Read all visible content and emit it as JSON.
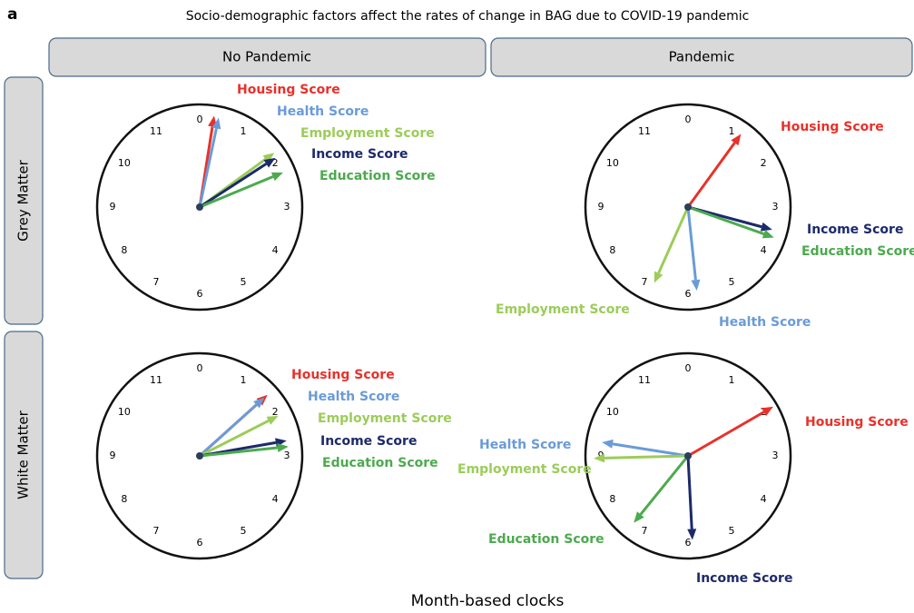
{
  "panel_label": "a",
  "title": "Socio-demographic factors affect the rates of change in BAG due to COVID-19 pandemic",
  "columns": [
    "No Pandemic",
    "Pandemic"
  ],
  "rows": [
    "Grey Matter",
    "White Matter"
  ],
  "footer": "Month-based clocks",
  "clock_numbers": [
    0,
    1,
    2,
    3,
    4,
    5,
    6,
    7,
    8,
    9,
    10,
    11
  ],
  "clocks": [
    {
      "arrows": [
        {
          "label": "Housing Score",
          "color": "#e8312b",
          "month": 0.3,
          "magnitude": 0.9
        },
        {
          "label": "Health Score",
          "color": "#6a9bd8",
          "month": 0.4,
          "magnitude": 0.89
        },
        {
          "label": "Employment Score",
          "color": "#9ccc5a",
          "month": 1.8,
          "magnitude": 0.9
        },
        {
          "label": "Income Score",
          "color": "#1c2a6b",
          "month": 1.9,
          "magnitude": 0.88
        },
        {
          "label": "Education Score",
          "color": "#4caa4e",
          "month": 2.25,
          "magnitude": 0.88
        }
      ]
    },
    {
      "arrows": [
        {
          "label": "Housing Score",
          "color": "#e8312b",
          "month": 1.2,
          "magnitude": 0.88
        },
        {
          "label": "Income Score",
          "color": "#1c2a6b",
          "month": 3.5,
          "magnitude": 0.85
        },
        {
          "label": "Education Score",
          "color": "#4caa4e",
          "month": 3.65,
          "magnitude": 0.89
        },
        {
          "label": "Employment Score",
          "color": "#9ccc5a",
          "month": 6.8,
          "magnitude": 0.81
        },
        {
          "label": "Health Score",
          "color": "#6a9bd8",
          "month": 5.8,
          "magnitude": 0.82
        }
      ]
    },
    {
      "arrows": [
        {
          "label": "Housing Score",
          "color": "#e8312b",
          "month": 1.6,
          "magnitude": 0.89
        },
        {
          "label": "Health Score",
          "color": "#6a9bd8",
          "month": 1.6,
          "magnitude": 0.85
        },
        {
          "label": "Employment Score",
          "color": "#9ccc5a",
          "month": 2.1,
          "magnitude": 0.86
        },
        {
          "label": "Income Score",
          "color": "#1c2a6b",
          "month": 2.67,
          "magnitude": 0.86
        },
        {
          "label": "Education Score",
          "color": "#4caa4e",
          "month": 2.8,
          "magnitude": 0.87
        }
      ]
    },
    {
      "arrows": [
        {
          "label": "Housing Score",
          "color": "#e8312b",
          "month": 2.0,
          "magnitude": 0.96
        },
        {
          "label": "Health Score",
          "color": "#6a9bd8",
          "month": 9.3,
          "magnitude": 0.85
        },
        {
          "label": "Employment Score",
          "color": "#9ccc5a",
          "month": 8.95,
          "magnitude": 0.92
        },
        {
          "label": "Education Score",
          "color": "#4caa4e",
          "month": 7.3,
          "magnitude": 0.84
        },
        {
          "label": "Income Score",
          "color": "#1c2a6b",
          "month": 5.9,
          "magnitude": 0.82
        }
      ]
    }
  ]
}
